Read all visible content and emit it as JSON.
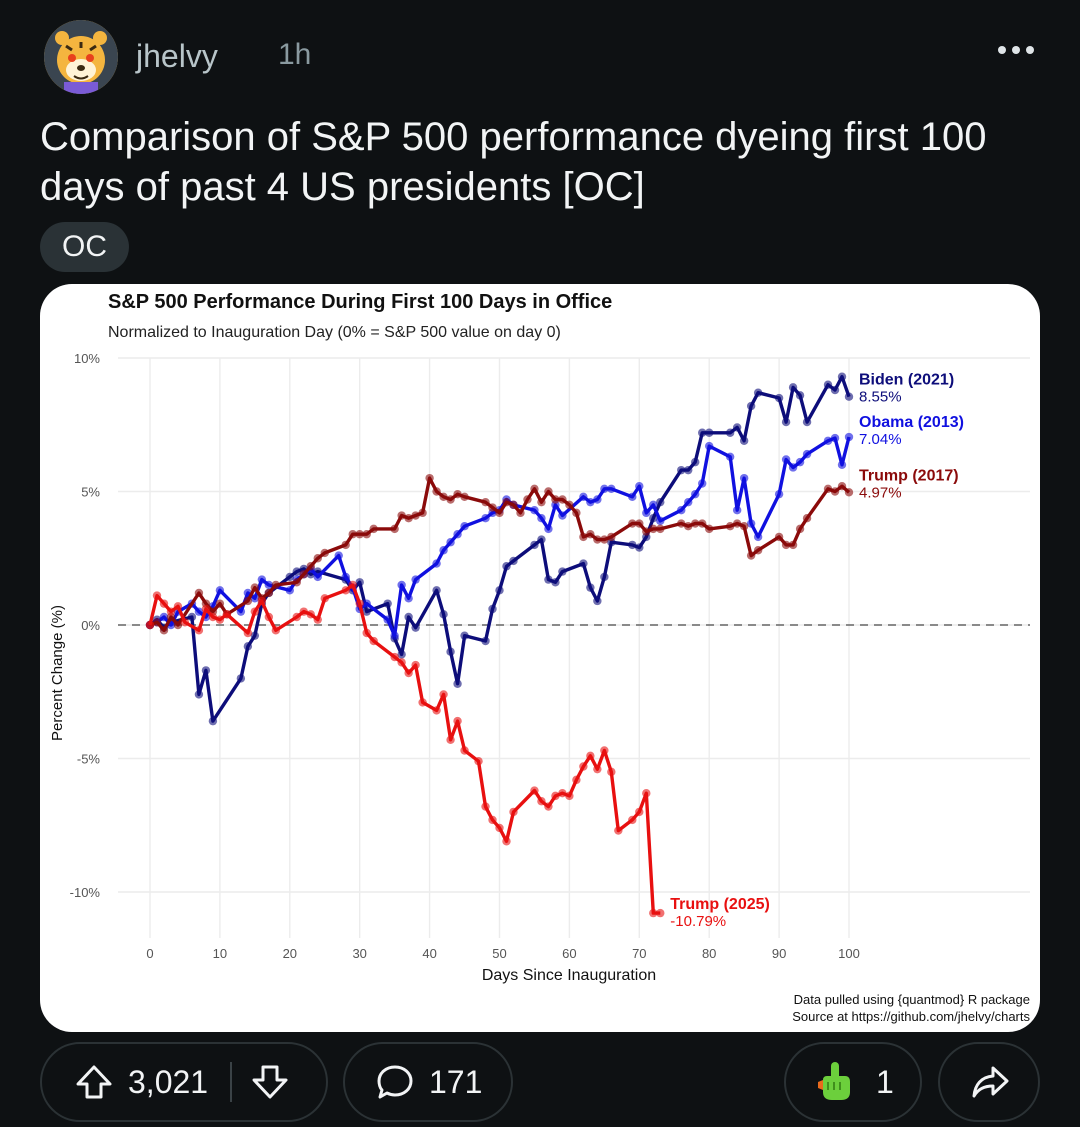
{
  "post": {
    "username": "jhelvy",
    "time": "1h",
    "title": "Comparison of S&P 500 performance dyeing first 100 days of past 4 US presidents [OC]",
    "flair": "OC"
  },
  "actions": {
    "upvotes": "3,021",
    "comments": "171",
    "awards": "1"
  },
  "chart_data": {
    "type": "line",
    "title": "S&P 500 Performance During First 100 Days in Office",
    "subtitle": "Normalized to Inauguration Day (0% = S&P 500 value on day 0)",
    "xlabel": "Days Since Inauguration",
    "ylabel": "Percent Change (%)",
    "xlim": [
      0,
      100
    ],
    "ylim": [
      -10,
      10
    ],
    "xticks": [
      0,
      10,
      20,
      30,
      40,
      50,
      60,
      70,
      80,
      90,
      100
    ],
    "yticks": [
      -10,
      -5,
      0,
      5,
      10
    ],
    "ytick_labels": [
      "-10%",
      "-5%",
      "0%",
      "5%",
      "10%"
    ],
    "caption_line1": "Data pulled using {quantmod} R package",
    "caption_line2": "Source at https://github.com/jhelvy/charts",
    "grid": true,
    "series": [
      {
        "name": "Biden (2021)",
        "end_label": "8.55%",
        "color": "#0d0d7a",
        "x": [
          0,
          1,
          2,
          3,
          6,
          7,
          8,
          9,
          13,
          14,
          15,
          16,
          17,
          20,
          21,
          22,
          23,
          24,
          28,
          29,
          30,
          31,
          34,
          35,
          36,
          37,
          38,
          41,
          42,
          43,
          44,
          45,
          48,
          49,
          50,
          51,
          52,
          55,
          56,
          57,
          58,
          59,
          62,
          63,
          64,
          65,
          66,
          69,
          70,
          71,
          72,
          73,
          76,
          77,
          78,
          79,
          80,
          83,
          84,
          85,
          86,
          87,
          90,
          91,
          92,
          93,
          94,
          97,
          98,
          99,
          100
        ],
        "y": [
          0,
          0.2,
          -0.1,
          0.1,
          0.3,
          -2.6,
          -1.7,
          -3.6,
          -2.0,
          -0.8,
          -0.4,
          0.8,
          1.2,
          1.8,
          2.0,
          2.1,
          1.9,
          2.0,
          1.7,
          1.3,
          1.6,
          0.5,
          0.8,
          -0.5,
          -1.1,
          0.3,
          -0.1,
          1.3,
          0.4,
          -1.0,
          -2.2,
          -0.4,
          -0.6,
          0.6,
          1.3,
          2.2,
          2.4,
          3.0,
          3.2,
          1.7,
          1.6,
          2.0,
          2.3,
          1.4,
          0.9,
          1.8,
          3.1,
          3.0,
          2.9,
          3.3,
          4.0,
          4.6,
          5.8,
          5.8,
          6.1,
          7.2,
          7.2,
          7.2,
          7.4,
          6.9,
          8.2,
          8.7,
          8.5,
          7.6,
          8.9,
          8.6,
          7.6,
          9.0,
          8.8,
          9.3,
          8.55
        ]
      },
      {
        "name": "Obama (2013)",
        "end_label": "7.04%",
        "color": "#1010e0",
        "x": [
          0,
          1,
          2,
          3,
          4,
          6,
          7,
          8,
          9,
          10,
          13,
          14,
          15,
          16,
          17,
          20,
          21,
          22,
          23,
          24,
          27,
          28,
          29,
          30,
          31,
          34,
          35,
          36,
          37,
          38,
          41,
          42,
          43,
          44,
          45,
          48,
          49,
          50,
          51,
          52,
          55,
          56,
          57,
          58,
          59,
          62,
          63,
          64,
          65,
          66,
          69,
          70,
          71,
          72,
          73,
          76,
          77,
          78,
          79,
          80,
          83,
          84,
          85,
          86,
          87,
          90,
          91,
          92,
          93,
          94,
          97,
          98,
          99,
          100
        ],
        "y": [
          0,
          0.1,
          0.3,
          0.0,
          0.5,
          0.8,
          0.5,
          0.3,
          0.7,
          1.3,
          0.5,
          1.2,
          1.0,
          1.7,
          1.5,
          1.3,
          1.7,
          1.9,
          2.1,
          1.8,
          2.6,
          1.8,
          1.4,
          0.6,
          0.8,
          0.2,
          -0.4,
          1.5,
          1.0,
          1.7,
          2.3,
          2.8,
          3.1,
          3.4,
          3.7,
          4.0,
          4.2,
          4.3,
          4.7,
          4.5,
          4.3,
          4.0,
          3.6,
          4.5,
          4.1,
          4.8,
          4.6,
          4.7,
          5.1,
          5.1,
          4.8,
          5.2,
          4.2,
          4.5,
          3.9,
          4.3,
          4.6,
          4.9,
          5.3,
          6.7,
          6.3,
          4.3,
          5.5,
          3.8,
          3.3,
          4.9,
          6.2,
          5.9,
          6.1,
          6.4,
          6.9,
          7.0,
          6.0,
          7.04
        ]
      },
      {
        "name": "Trump (2017)",
        "end_label": "4.97%",
        "color": "#8b0a0a",
        "x": [
          0,
          1,
          2,
          3,
          4,
          7,
          8,
          9,
          10,
          11,
          14,
          15,
          16,
          17,
          18,
          21,
          22,
          23,
          24,
          25,
          28,
          29,
          30,
          31,
          32,
          35,
          36,
          37,
          38,
          39,
          40,
          41,
          42,
          43,
          44,
          45,
          48,
          49,
          50,
          51,
          52,
          53,
          54,
          55,
          56,
          57,
          58,
          59,
          60,
          61,
          62,
          63,
          64,
          65,
          66,
          69,
          70,
          71,
          72,
          73,
          76,
          77,
          78,
          79,
          80,
          83,
          84,
          85,
          86,
          87,
          90,
          91,
          92,
          93,
          94,
          97,
          98,
          99,
          100
        ],
        "y": [
          0,
          0.1,
          -0.2,
          0.3,
          0.0,
          1.2,
          0.8,
          0.5,
          0.8,
          0.4,
          0.9,
          1.4,
          1.0,
          1.2,
          1.5,
          1.6,
          1.9,
          2.2,
          2.5,
          2.7,
          3.0,
          3.4,
          3.4,
          3.4,
          3.6,
          3.6,
          4.1,
          4.0,
          4.1,
          4.2,
          5.5,
          5.0,
          4.8,
          4.7,
          4.9,
          4.8,
          4.6,
          4.4,
          4.2,
          4.6,
          4.5,
          4.2,
          4.7,
          5.1,
          4.6,
          5.0,
          4.7,
          4.7,
          4.5,
          4.2,
          3.3,
          3.4,
          3.2,
          3.2,
          3.3,
          3.8,
          3.8,
          3.5,
          3.6,
          3.6,
          3.8,
          3.7,
          3.8,
          3.8,
          3.6,
          3.7,
          3.8,
          3.7,
          2.6,
          2.8,
          3.3,
          3.0,
          3.0,
          3.6,
          4.0,
          5.1,
          5.0,
          5.2,
          4.97
        ]
      },
      {
        "name": "Trump (2025)",
        "end_label": "-10.79%",
        "color": "#e81010",
        "x": [
          0,
          1,
          2,
          3,
          4,
          5,
          7,
          8,
          9,
          10,
          11,
          14,
          15,
          16,
          17,
          18,
          21,
          22,
          23,
          24,
          25,
          28,
          29,
          30,
          31,
          32,
          35,
          36,
          37,
          38,
          39,
          41,
          42,
          43,
          44,
          45,
          47,
          48,
          49,
          50,
          51,
          52,
          55,
          56,
          57,
          58,
          59,
          60,
          61,
          62,
          63,
          64,
          65,
          66,
          67,
          69,
          70,
          71,
          72,
          73
        ],
        "y": [
          0,
          1.1,
          0.8,
          0.5,
          0.7,
          0.1,
          -0.2,
          0.6,
          0.3,
          0.2,
          0.4,
          -0.3,
          0.5,
          0.9,
          0.3,
          -0.2,
          0.3,
          0.5,
          0.4,
          0.2,
          1.0,
          1.3,
          1.5,
          0.8,
          -0.3,
          -0.6,
          -1.2,
          -1.4,
          -1.8,
          -1.5,
          -2.9,
          -3.2,
          -2.6,
          -4.3,
          -3.6,
          -4.7,
          -5.1,
          -6.8,
          -7.3,
          -7.6,
          -8.1,
          -7.0,
          -6.2,
          -6.6,
          -6.8,
          -6.4,
          -6.3,
          -6.4,
          -5.8,
          -5.3,
          -4.9,
          -5.4,
          -4.7,
          -5.5,
          -7.7,
          -7.3,
          -7.0,
          -6.3,
          -10.79,
          -10.79
        ]
      }
    ]
  }
}
